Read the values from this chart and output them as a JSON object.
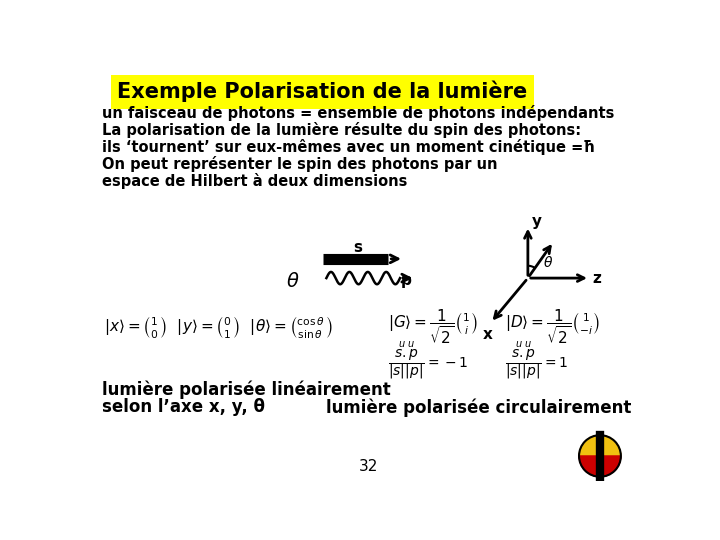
{
  "title": "Exemple Polarisation de la lumière",
  "title_bg": "#ffff00",
  "bg_color": "#ffffff",
  "body_text_lines": [
    "un faisceau de photons = ensemble de photons indépendants",
    "La polarisation de la lumière résulte du spin des photons:",
    "ils ‘tournent’ sur eux-mêmes avec un moment cinétique =ħ",
    "On peut représenter le spin des photons par un",
    "espace de Hilbert à deux dimensions"
  ],
  "bottom_left_text": [
    "lumière polarisée linéairement",
    "selon l’axe x, y, θ"
  ],
  "bottom_right_text": "lumière polarisée circulairement",
  "page_number": "32"
}
